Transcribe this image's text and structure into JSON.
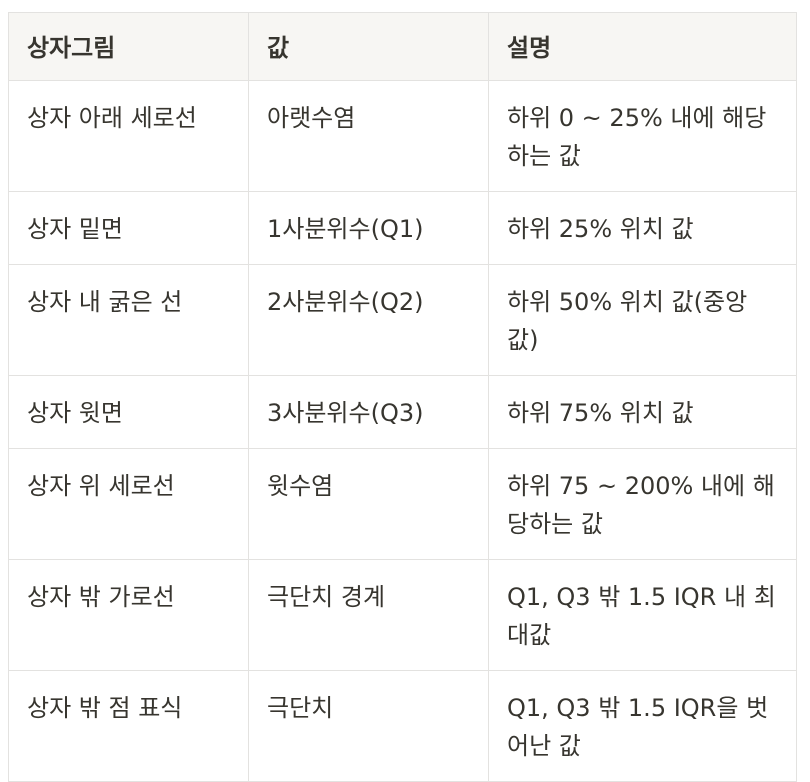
{
  "table": {
    "headers": [
      "상자그림",
      "값",
      "설명"
    ],
    "rows": [
      {
        "part": "상자 아래 세로선",
        "value": "아랫수염",
        "desc": "하위 0 ~ 25% 내에 해당하는 값"
      },
      {
        "part": "상자 밑면",
        "value": "1사분위수(Q1)",
        "desc": "하위 25% 위치 값"
      },
      {
        "part": "상자 내 굵은 선",
        "value": "2사분위수(Q2)",
        "desc": "하위 50% 위치 값(중앙값)"
      },
      {
        "part": "상자 윗면",
        "value": "3사분위수(Q3)",
        "desc": "하위 75% 위치 값"
      },
      {
        "part": "상자 위 세로선",
        "value": "윗수염",
        "desc": "하위 75 ~ 200% 내에 해당하는 값"
      },
      {
        "part": "상자 밖 가로선",
        "value": "극단치 경계",
        "desc": "Q1, Q3 밖 1.5 IQR 내 최대값"
      },
      {
        "part": "상자 밖 점 표식",
        "value": "극단치",
        "desc": "Q1, Q3 밖 1.5 IQR을 벗어난 값"
      }
    ]
  }
}
